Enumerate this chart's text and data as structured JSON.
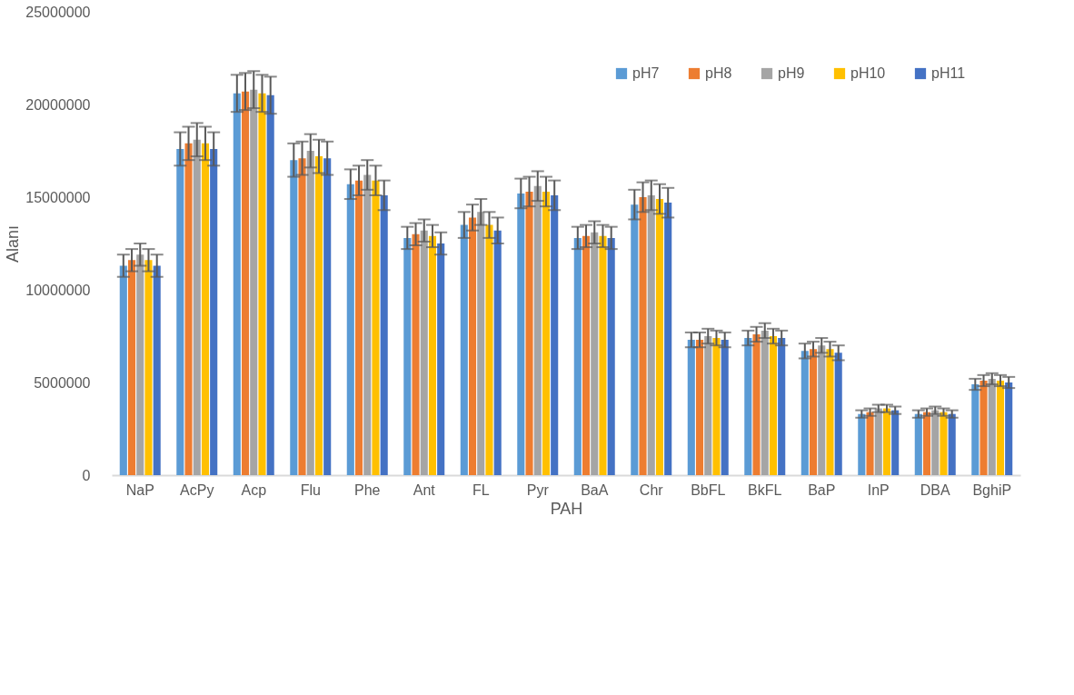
{
  "chart_data": {
    "type": "bar",
    "xlabel": "PAH",
    "ylabel": "Alanı",
    "categories": [
      "NaP",
      "AcPy",
      "Acp",
      "Flu",
      "Phe",
      "Ant",
      "FL",
      "Pyr",
      "BaA",
      "Chr",
      "BbFL",
      "BkFL",
      "BaP",
      "InP",
      "DBA",
      "BghiP"
    ],
    "series": [
      {
        "name": "pH7",
        "color": "#5b9bd5",
        "values": [
          11300000,
          17600000,
          20600000,
          17000000,
          15700000,
          12800000,
          13500000,
          15200000,
          12800000,
          14600000,
          7300000,
          7400000,
          6700000,
          3300000,
          3300000,
          4900000
        ],
        "errors": [
          600000,
          900000,
          1000000,
          900000,
          800000,
          600000,
          700000,
          800000,
          600000,
          800000,
          400000,
          400000,
          400000,
          200000,
          200000,
          300000
        ]
      },
      {
        "name": "pH8",
        "color": "#ed7d31",
        "values": [
          11600000,
          17900000,
          20700000,
          17100000,
          15900000,
          13000000,
          13900000,
          15300000,
          12900000,
          15000000,
          7300000,
          7600000,
          6800000,
          3400000,
          3400000,
          5100000
        ],
        "errors": [
          600000,
          900000,
          1000000,
          900000,
          800000,
          600000,
          700000,
          800000,
          600000,
          800000,
          400000,
          400000,
          400000,
          200000,
          200000,
          300000
        ]
      },
      {
        "name": "pH9",
        "color": "#a5a5a5",
        "values": [
          11900000,
          18100000,
          20800000,
          17500000,
          16200000,
          13200000,
          14200000,
          15600000,
          13100000,
          15100000,
          7500000,
          7800000,
          7000000,
          3600000,
          3500000,
          5200000
        ],
        "errors": [
          600000,
          900000,
          1000000,
          900000,
          800000,
          600000,
          700000,
          800000,
          600000,
          800000,
          400000,
          400000,
          400000,
          200000,
          200000,
          300000
        ]
      },
      {
        "name": "pH10",
        "color": "#ffc000",
        "values": [
          11600000,
          17900000,
          20600000,
          17200000,
          15900000,
          12900000,
          13500000,
          15300000,
          12900000,
          14900000,
          7400000,
          7500000,
          6800000,
          3600000,
          3400000,
          5100000
        ],
        "errors": [
          600000,
          900000,
          1000000,
          900000,
          800000,
          600000,
          700000,
          800000,
          600000,
          800000,
          400000,
          400000,
          400000,
          200000,
          200000,
          300000
        ]
      },
      {
        "name": "pH11",
        "color": "#4472c4",
        "values": [
          11300000,
          17600000,
          20500000,
          17100000,
          15100000,
          12500000,
          13200000,
          15100000,
          12800000,
          14700000,
          7300000,
          7400000,
          6600000,
          3500000,
          3300000,
          5000000
        ],
        "errors": [
          600000,
          900000,
          1000000,
          900000,
          800000,
          600000,
          700000,
          800000,
          600000,
          800000,
          400000,
          400000,
          400000,
          200000,
          200000,
          300000
        ]
      }
    ],
    "ylim": [
      0,
      25000000
    ],
    "yticks": [
      0,
      5000000,
      10000000,
      15000000,
      20000000,
      25000000
    ],
    "grid": false,
    "legend": "top right"
  }
}
